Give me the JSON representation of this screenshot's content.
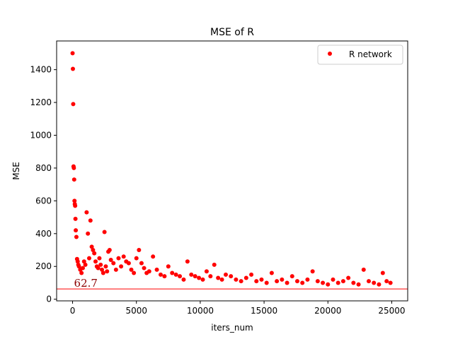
{
  "chart_data": {
    "type": "scatter",
    "title": "MSE of R",
    "xlabel": "iters_num",
    "ylabel": "MSE",
    "xlim": [
      -1250,
      26250
    ],
    "ylim": [
      -10,
      1575
    ],
    "x_ticks": [
      0,
      5000,
      10000,
      15000,
      20000,
      25000
    ],
    "x_tick_labels": [
      "0",
      "5000",
      "10000",
      "15000",
      "20000",
      "25000"
    ],
    "y_ticks": [
      0,
      200,
      400,
      600,
      800,
      1000,
      1200,
      1400
    ],
    "y_tick_labels": [
      "0",
      "200",
      "400",
      "600",
      "800",
      "1000",
      "1200",
      "1400"
    ],
    "grid": false,
    "legend_position": "top-right",
    "series": [
      {
        "name": "R network",
        "color": "#ff0000",
        "marker": "circle",
        "x": [
          0,
          25,
          50,
          75,
          100,
          125,
          150,
          175,
          200,
          225,
          250,
          300,
          350,
          400,
          450,
          500,
          600,
          700,
          800,
          900,
          1000,
          1100,
          1200,
          1300,
          1400,
          1500,
          1600,
          1700,
          1800,
          1900,
          2000,
          2100,
          2200,
          2300,
          2400,
          2500,
          2600,
          2700,
          2800,
          2900,
          3000,
          3200,
          3400,
          3600,
          3800,
          4000,
          4200,
          4400,
          4600,
          4800,
          5000,
          5200,
          5400,
          5600,
          5800,
          6000,
          6300,
          6600,
          6900,
          7200,
          7500,
          7800,
          8100,
          8400,
          8700,
          9000,
          9300,
          9600,
          9900,
          10200,
          10500,
          10800,
          11100,
          11400,
          11700,
          12000,
          12400,
          12800,
          13200,
          13600,
          14000,
          14400,
          14800,
          15200,
          15600,
          16000,
          16400,
          16800,
          17200,
          17600,
          18000,
          18400,
          18800,
          19200,
          19600,
          20000,
          20400,
          20800,
          21200,
          21600,
          22000,
          22400,
          22800,
          23200,
          23600,
          24000,
          24300,
          24600,
          24900
        ],
        "y": [
          1500,
          1405,
          1190,
          810,
          800,
          730,
          600,
          580,
          570,
          490,
          420,
          380,
          245,
          230,
          210,
          200,
          180,
          160,
          190,
          230,
          210,
          530,
          400,
          250,
          480,
          320,
          300,
          280,
          230,
          200,
          190,
          250,
          210,
          180,
          160,
          410,
          200,
          170,
          290,
          300,
          240,
          220,
          180,
          250,
          200,
          260,
          230,
          220,
          180,
          160,
          250,
          300,
          220,
          190,
          160,
          170,
          260,
          180,
          150,
          140,
          200,
          160,
          150,
          140,
          120,
          230,
          150,
          140,
          130,
          120,
          170,
          140,
          210,
          130,
          120,
          150,
          140,
          120,
          110,
          130,
          150,
          110,
          120,
          100,
          160,
          110,
          120,
          100,
          140,
          110,
          100,
          120,
          170,
          110,
          100,
          90,
          120,
          100,
          110,
          130,
          100,
          90,
          180,
          110,
          100,
          90,
          160,
          110,
          100
        ]
      }
    ],
    "hline": {
      "y": 62.7,
      "color": "#ff0000",
      "label": "62.7"
    }
  }
}
